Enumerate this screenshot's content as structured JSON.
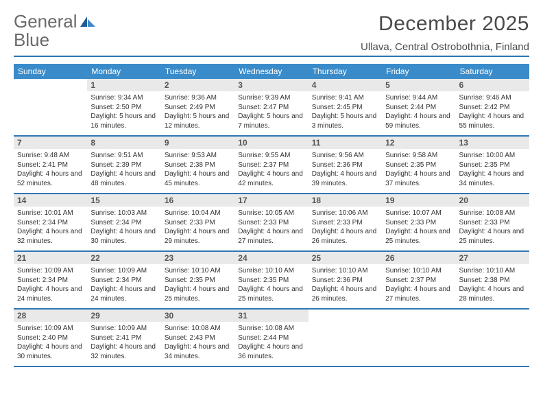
{
  "brand": {
    "word1": "General",
    "word2": "Blue"
  },
  "title": "December 2025",
  "location": "Ullava, Central Ostrobothnia, Finland",
  "colors": {
    "header_bg": "#3a8bc9",
    "accent_line": "#2d76b5",
    "daynum_bg": "#e9e9e9",
    "text": "#333333",
    "logo_gray": "#6a6a6a",
    "logo_blue": "#2b7bbd"
  },
  "weekdays": [
    "Sunday",
    "Monday",
    "Tuesday",
    "Wednesday",
    "Thursday",
    "Friday",
    "Saturday"
  ],
  "weeks": [
    [
      {
        "n": "",
        "sr": "",
        "ss": "",
        "dl": ""
      },
      {
        "n": "1",
        "sr": "Sunrise: 9:34 AM",
        "ss": "Sunset: 2:50 PM",
        "dl": "Daylight: 5 hours and 16 minutes."
      },
      {
        "n": "2",
        "sr": "Sunrise: 9:36 AM",
        "ss": "Sunset: 2:49 PM",
        "dl": "Daylight: 5 hours and 12 minutes."
      },
      {
        "n": "3",
        "sr": "Sunrise: 9:39 AM",
        "ss": "Sunset: 2:47 PM",
        "dl": "Daylight: 5 hours and 7 minutes."
      },
      {
        "n": "4",
        "sr": "Sunrise: 9:41 AM",
        "ss": "Sunset: 2:45 PM",
        "dl": "Daylight: 5 hours and 3 minutes."
      },
      {
        "n": "5",
        "sr": "Sunrise: 9:44 AM",
        "ss": "Sunset: 2:44 PM",
        "dl": "Daylight: 4 hours and 59 minutes."
      },
      {
        "n": "6",
        "sr": "Sunrise: 9:46 AM",
        "ss": "Sunset: 2:42 PM",
        "dl": "Daylight: 4 hours and 55 minutes."
      }
    ],
    [
      {
        "n": "7",
        "sr": "Sunrise: 9:48 AM",
        "ss": "Sunset: 2:41 PM",
        "dl": "Daylight: 4 hours and 52 minutes."
      },
      {
        "n": "8",
        "sr": "Sunrise: 9:51 AM",
        "ss": "Sunset: 2:39 PM",
        "dl": "Daylight: 4 hours and 48 minutes."
      },
      {
        "n": "9",
        "sr": "Sunrise: 9:53 AM",
        "ss": "Sunset: 2:38 PM",
        "dl": "Daylight: 4 hours and 45 minutes."
      },
      {
        "n": "10",
        "sr": "Sunrise: 9:55 AM",
        "ss": "Sunset: 2:37 PM",
        "dl": "Daylight: 4 hours and 42 minutes."
      },
      {
        "n": "11",
        "sr": "Sunrise: 9:56 AM",
        "ss": "Sunset: 2:36 PM",
        "dl": "Daylight: 4 hours and 39 minutes."
      },
      {
        "n": "12",
        "sr": "Sunrise: 9:58 AM",
        "ss": "Sunset: 2:35 PM",
        "dl": "Daylight: 4 hours and 37 minutes."
      },
      {
        "n": "13",
        "sr": "Sunrise: 10:00 AM",
        "ss": "Sunset: 2:35 PM",
        "dl": "Daylight: 4 hours and 34 minutes."
      }
    ],
    [
      {
        "n": "14",
        "sr": "Sunrise: 10:01 AM",
        "ss": "Sunset: 2:34 PM",
        "dl": "Daylight: 4 hours and 32 minutes."
      },
      {
        "n": "15",
        "sr": "Sunrise: 10:03 AM",
        "ss": "Sunset: 2:34 PM",
        "dl": "Daylight: 4 hours and 30 minutes."
      },
      {
        "n": "16",
        "sr": "Sunrise: 10:04 AM",
        "ss": "Sunset: 2:33 PM",
        "dl": "Daylight: 4 hours and 29 minutes."
      },
      {
        "n": "17",
        "sr": "Sunrise: 10:05 AM",
        "ss": "Sunset: 2:33 PM",
        "dl": "Daylight: 4 hours and 27 minutes."
      },
      {
        "n": "18",
        "sr": "Sunrise: 10:06 AM",
        "ss": "Sunset: 2:33 PM",
        "dl": "Daylight: 4 hours and 26 minutes."
      },
      {
        "n": "19",
        "sr": "Sunrise: 10:07 AM",
        "ss": "Sunset: 2:33 PM",
        "dl": "Daylight: 4 hours and 25 minutes."
      },
      {
        "n": "20",
        "sr": "Sunrise: 10:08 AM",
        "ss": "Sunset: 2:33 PM",
        "dl": "Daylight: 4 hours and 25 minutes."
      }
    ],
    [
      {
        "n": "21",
        "sr": "Sunrise: 10:09 AM",
        "ss": "Sunset: 2:34 PM",
        "dl": "Daylight: 4 hours and 24 minutes."
      },
      {
        "n": "22",
        "sr": "Sunrise: 10:09 AM",
        "ss": "Sunset: 2:34 PM",
        "dl": "Daylight: 4 hours and 24 minutes."
      },
      {
        "n": "23",
        "sr": "Sunrise: 10:10 AM",
        "ss": "Sunset: 2:35 PM",
        "dl": "Daylight: 4 hours and 25 minutes."
      },
      {
        "n": "24",
        "sr": "Sunrise: 10:10 AM",
        "ss": "Sunset: 2:35 PM",
        "dl": "Daylight: 4 hours and 25 minutes."
      },
      {
        "n": "25",
        "sr": "Sunrise: 10:10 AM",
        "ss": "Sunset: 2:36 PM",
        "dl": "Daylight: 4 hours and 26 minutes."
      },
      {
        "n": "26",
        "sr": "Sunrise: 10:10 AM",
        "ss": "Sunset: 2:37 PM",
        "dl": "Daylight: 4 hours and 27 minutes."
      },
      {
        "n": "27",
        "sr": "Sunrise: 10:10 AM",
        "ss": "Sunset: 2:38 PM",
        "dl": "Daylight: 4 hours and 28 minutes."
      }
    ],
    [
      {
        "n": "28",
        "sr": "Sunrise: 10:09 AM",
        "ss": "Sunset: 2:40 PM",
        "dl": "Daylight: 4 hours and 30 minutes."
      },
      {
        "n": "29",
        "sr": "Sunrise: 10:09 AM",
        "ss": "Sunset: 2:41 PM",
        "dl": "Daylight: 4 hours and 32 minutes."
      },
      {
        "n": "30",
        "sr": "Sunrise: 10:08 AM",
        "ss": "Sunset: 2:43 PM",
        "dl": "Daylight: 4 hours and 34 minutes."
      },
      {
        "n": "31",
        "sr": "Sunrise: 10:08 AM",
        "ss": "Sunset: 2:44 PM",
        "dl": "Daylight: 4 hours and 36 minutes."
      },
      {
        "n": "",
        "sr": "",
        "ss": "",
        "dl": ""
      },
      {
        "n": "",
        "sr": "",
        "ss": "",
        "dl": ""
      },
      {
        "n": "",
        "sr": "",
        "ss": "",
        "dl": ""
      }
    ]
  ]
}
